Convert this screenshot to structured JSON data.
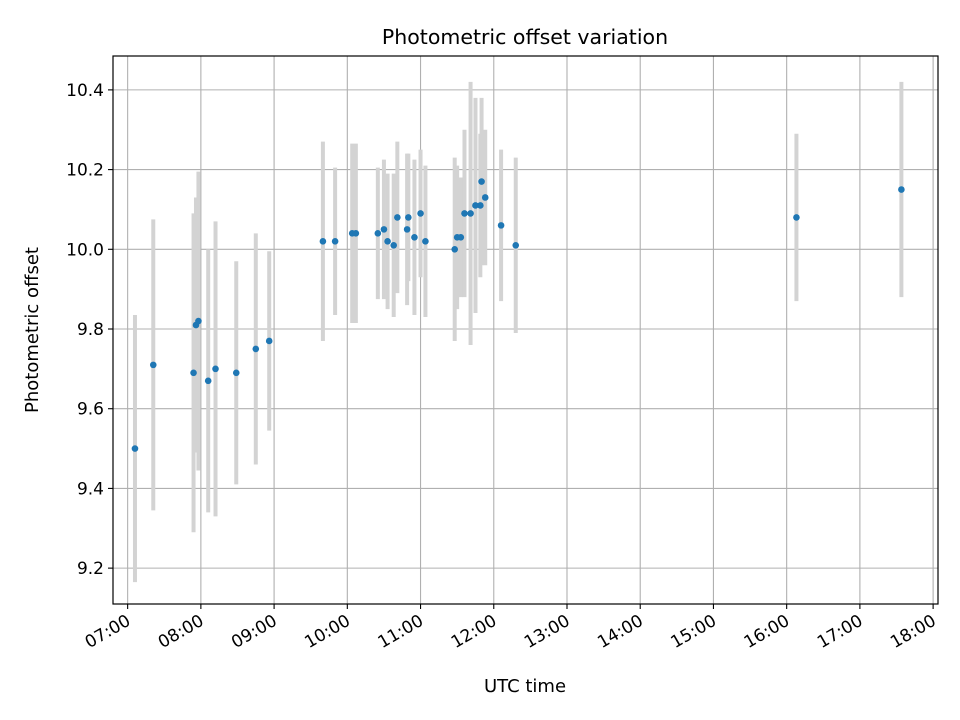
{
  "chart_data": {
    "type": "scatter",
    "title": "Photometric offset variation",
    "xlabel": "UTC time",
    "ylabel": "Photometric offset",
    "x_axis_kind": "time",
    "xlim": [
      "06:48",
      "18:04"
    ],
    "ylim": [
      9.11,
      10.485
    ],
    "grid": true,
    "x_ticks": [
      "07:00",
      "08:00",
      "09:00",
      "10:00",
      "11:00",
      "12:00",
      "13:00",
      "14:00",
      "15:00",
      "16:00",
      "17:00",
      "18:00"
    ],
    "y_ticks": [
      9.2,
      9.4,
      9.6,
      9.8,
      10.0,
      10.2,
      10.4
    ],
    "y_tick_labels": [
      "9.2",
      "9.4",
      "9.6",
      "9.8",
      "10.0",
      "10.2",
      "10.4"
    ],
    "colors": {
      "point": "#1f77b4",
      "errorbar": "#d3d3d3",
      "grid": "#b0b0b0"
    },
    "points": [
      {
        "x": "07:06",
        "y": 9.5,
        "err": 0.335
      },
      {
        "x": "07:21",
        "y": 9.71,
        "err": 0.365
      },
      {
        "x": "07:54",
        "y": 9.69,
        "err": 0.4
      },
      {
        "x": "07:56",
        "y": 9.81,
        "err": 0.32
      },
      {
        "x": "07:58",
        "y": 9.82,
        "err": 0.375
      },
      {
        "x": "08:06",
        "y": 9.67,
        "err": 0.33
      },
      {
        "x": "08:12",
        "y": 9.7,
        "err": 0.37
      },
      {
        "x": "08:29",
        "y": 9.69,
        "err": 0.28
      },
      {
        "x": "08:45",
        "y": 9.75,
        "err": 0.29
      },
      {
        "x": "08:56",
        "y": 9.77,
        "err": 0.225
      },
      {
        "x": "09:40",
        "y": 10.02,
        "err": 0.25
      },
      {
        "x": "09:50",
        "y": 10.02,
        "err": 0.185
      },
      {
        "x": "10:04",
        "y": 10.04,
        "err": 0.225
      },
      {
        "x": "10:07",
        "y": 10.04,
        "err": 0.225
      },
      {
        "x": "10:25",
        "y": 10.04,
        "err": 0.165
      },
      {
        "x": "10:30",
        "y": 10.05,
        "err": 0.175
      },
      {
        "x": "10:33",
        "y": 10.02,
        "err": 0.17
      },
      {
        "x": "10:38",
        "y": 10.01,
        "err": 0.18
      },
      {
        "x": "10:41",
        "y": 10.08,
        "err": 0.19
      },
      {
        "x": "10:49",
        "y": 10.05,
        "err": 0.19
      },
      {
        "x": "10:50",
        "y": 10.08,
        "err": 0.16
      },
      {
        "x": "10:55",
        "y": 10.03,
        "err": 0.195
      },
      {
        "x": "11:00",
        "y": 10.09,
        "err": 0.16
      },
      {
        "x": "11:04",
        "y": 10.02,
        "err": 0.19
      },
      {
        "x": "11:28",
        "y": 10.0,
        "err": 0.23
      },
      {
        "x": "11:30",
        "y": 10.03,
        "err": 0.18
      },
      {
        "x": "11:33",
        "y": 10.03,
        "err": 0.15
      },
      {
        "x": "11:36",
        "y": 10.09,
        "err": 0.21
      },
      {
        "x": "11:41",
        "y": 10.09,
        "err": 0.33
      },
      {
        "x": "11:45",
        "y": 10.11,
        "err": 0.27
      },
      {
        "x": "11:49",
        "y": 10.11,
        "err": 0.18
      },
      {
        "x": "11:50",
        "y": 10.17,
        "err": 0.21
      },
      {
        "x": "11:53",
        "y": 10.13,
        "err": 0.17
      },
      {
        "x": "12:06",
        "y": 10.06,
        "err": 0.19
      },
      {
        "x": "12:18",
        "y": 10.01,
        "err": 0.22
      },
      {
        "x": "16:08",
        "y": 10.08,
        "err": 0.21
      },
      {
        "x": "17:34",
        "y": 10.15,
        "err": 0.27
      }
    ]
  }
}
